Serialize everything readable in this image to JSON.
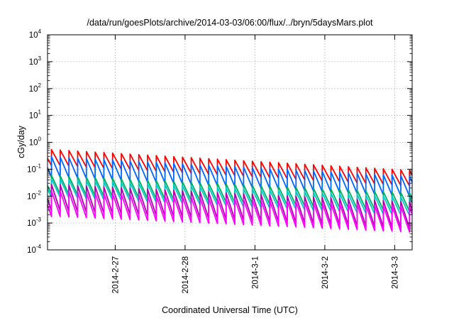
{
  "chart_data": {
    "type": "line",
    "title": "/data/run/goesPlots/archive/2014-03-03/06:00/flux/../bryn/5daysMars.plot",
    "xlabel": "Coordinated Universal Time (UTC)",
    "ylabel": "cGy/day",
    "y_scale": "log",
    "ylim": [
      0.0001,
      10000
    ],
    "y_tick_labels": [
      {
        "base": "10",
        "exp": "-4",
        "value": 0.0001
      },
      {
        "base": "10",
        "exp": "-3",
        "value": 0.001
      },
      {
        "base": "10",
        "exp": "-2",
        "value": 0.01
      },
      {
        "base": "10",
        "exp": "-1",
        "value": 0.1
      },
      {
        "base": "10",
        "exp": "0",
        "value": 1
      },
      {
        "base": "10",
        "exp": "1",
        "value": 10
      },
      {
        "base": "10",
        "exp": "2",
        "value": 100
      },
      {
        "base": "10",
        "exp": "3",
        "value": 1000
      },
      {
        "base": "10",
        "exp": "4",
        "value": 10000
      }
    ],
    "xlim": [
      "2014-02-26 00:45",
      "2014-03-03 06:00"
    ],
    "x_ticks": [
      "2014-2-27",
      "2014-2-28",
      "2014-3-1",
      "2014-3-2",
      "2014-3-3"
    ],
    "grid": true,
    "legend": "none",
    "sawtooth_period_hours": 3,
    "series": [
      {
        "color": "#ff0000",
        "peak_start": 0.55,
        "peak_end": 0.09,
        "trough_ratio": 0.25
      },
      {
        "color": "#0064ff",
        "peak_start": 0.3,
        "peak_end": 0.055,
        "trough_ratio": 0.17
      },
      {
        "color": "#00b060",
        "peak_start": 0.06,
        "peak_end": 0.013,
        "trough_ratio": 0.2
      },
      {
        "color": "#00c8c8",
        "peak_start": 0.045,
        "peak_end": 0.009,
        "trough_ratio": 0.2
      },
      {
        "color": "#b000b0",
        "peak_start": 0.028,
        "peak_end": 0.006,
        "trough_ratio": 0.1
      },
      {
        "color": "#ff00ff",
        "peak_start": 0.016,
        "peak_end": 0.004,
        "trough_ratio": 0.11
      }
    ]
  }
}
